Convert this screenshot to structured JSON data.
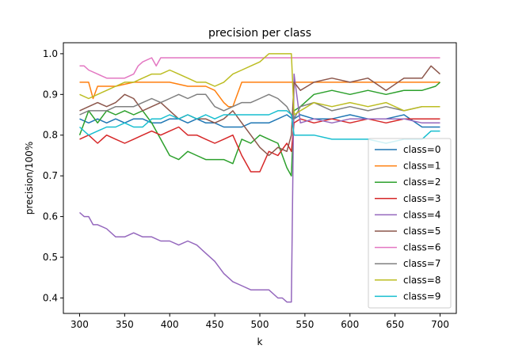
{
  "chart_data": {
    "type": "line",
    "title": "precision per class",
    "xlabel": "k",
    "ylabel": "precision/100%",
    "xlim": [
      282,
      718
    ],
    "ylim": [
      0.362,
      1.027
    ],
    "xticks": [
      300,
      350,
      400,
      450,
      500,
      550,
      600,
      650,
      700
    ],
    "yticks": [
      0.4,
      0.5,
      0.6,
      0.7,
      0.8,
      0.9,
      1.0
    ],
    "ytick_labels": [
      "0.4",
      "0.5",
      "0.6",
      "0.7",
      "0.8",
      "0.9",
      "1.0"
    ],
    "grid": false,
    "legend_position": "lower-right",
    "series": [
      {
        "name": "class=0",
        "color": "#1f77b4",
        "x": [
          300,
          310,
          320,
          330,
          340,
          350,
          360,
          370,
          380,
          390,
          400,
          410,
          420,
          430,
          440,
          450,
          460,
          470,
          480,
          490,
          500,
          510,
          520,
          530,
          536,
          538,
          545,
          560,
          580,
          600,
          620,
          640,
          660,
          680,
          700
        ],
        "y": [
          0.84,
          0.83,
          0.84,
          0.83,
          0.84,
          0.83,
          0.84,
          0.84,
          0.83,
          0.83,
          0.84,
          0.84,
          0.83,
          0.84,
          0.83,
          0.83,
          0.82,
          0.82,
          0.82,
          0.83,
          0.83,
          0.83,
          0.84,
          0.85,
          0.84,
          0.84,
          0.85,
          0.84,
          0.84,
          0.85,
          0.84,
          0.84,
          0.85,
          0.82,
          0.82
        ]
      },
      {
        "name": "class=1",
        "color": "#ff7f0e",
        "x": [
          300,
          310,
          315,
          320,
          330,
          340,
          360,
          380,
          400,
          420,
          440,
          450,
          460,
          465,
          470,
          480,
          500,
          520,
          535,
          538,
          545,
          560,
          580,
          600,
          620,
          640,
          660,
          680,
          700
        ],
        "y": [
          0.93,
          0.93,
          0.89,
          0.92,
          0.92,
          0.92,
          0.93,
          0.93,
          0.93,
          0.92,
          0.92,
          0.91,
          0.88,
          0.87,
          0.87,
          0.93,
          0.93,
          0.93,
          0.93,
          0.93,
          0.93,
          0.93,
          0.93,
          0.93,
          0.93,
          0.93,
          0.93,
          0.93,
          0.93
        ]
      },
      {
        "name": "class=2",
        "color": "#2ca02c",
        "x": [
          300,
          310,
          320,
          330,
          340,
          350,
          360,
          370,
          380,
          390,
          400,
          410,
          420,
          430,
          440,
          450,
          460,
          470,
          480,
          490,
          500,
          510,
          520,
          530,
          535,
          538,
          545,
          560,
          580,
          600,
          620,
          640,
          660,
          680,
          695,
          700
        ],
        "y": [
          0.8,
          0.86,
          0.83,
          0.86,
          0.85,
          0.86,
          0.85,
          0.86,
          0.83,
          0.79,
          0.75,
          0.74,
          0.76,
          0.75,
          0.74,
          0.74,
          0.74,
          0.73,
          0.79,
          0.78,
          0.8,
          0.79,
          0.78,
          0.72,
          0.7,
          0.86,
          0.87,
          0.9,
          0.91,
          0.9,
          0.91,
          0.9,
          0.91,
          0.91,
          0.92,
          0.93
        ]
      },
      {
        "name": "class=3",
        "color": "#d62728",
        "x": [
          300,
          310,
          320,
          330,
          340,
          350,
          360,
          370,
          380,
          390,
          400,
          410,
          420,
          430,
          440,
          450,
          460,
          470,
          480,
          490,
          500,
          510,
          520,
          530,
          535,
          538,
          545,
          560,
          580,
          600,
          620,
          640,
          660,
          680,
          700
        ],
        "y": [
          0.79,
          0.8,
          0.78,
          0.8,
          0.79,
          0.78,
          0.79,
          0.8,
          0.81,
          0.8,
          0.81,
          0.82,
          0.8,
          0.8,
          0.79,
          0.78,
          0.79,
          0.8,
          0.75,
          0.71,
          0.71,
          0.76,
          0.75,
          0.78,
          0.76,
          0.83,
          0.84,
          0.83,
          0.84,
          0.83,
          0.84,
          0.83,
          0.84,
          0.84,
          0.84
        ]
      },
      {
        "name": "class=4",
        "color": "#9467bd",
        "x": [
          300,
          305,
          310,
          315,
          320,
          330,
          340,
          350,
          360,
          370,
          380,
          390,
          400,
          410,
          420,
          430,
          440,
          450,
          460,
          470,
          480,
          490,
          500,
          510,
          520,
          525,
          530,
          535,
          538,
          545,
          560,
          580,
          600,
          620,
          640,
          660,
          680,
          700
        ],
        "y": [
          0.61,
          0.6,
          0.6,
          0.58,
          0.58,
          0.57,
          0.55,
          0.55,
          0.56,
          0.55,
          0.55,
          0.54,
          0.54,
          0.53,
          0.54,
          0.53,
          0.51,
          0.49,
          0.46,
          0.44,
          0.43,
          0.42,
          0.42,
          0.42,
          0.4,
          0.4,
          0.39,
          0.39,
          0.95,
          0.83,
          0.84,
          0.83,
          0.84,
          0.84,
          0.84,
          0.84,
          0.83,
          0.83
        ]
      },
      {
        "name": "class=5",
        "color": "#8c564b",
        "x": [
          300,
          310,
          320,
          330,
          340,
          350,
          360,
          370,
          380,
          390,
          400,
          410,
          420,
          430,
          440,
          450,
          460,
          470,
          480,
          490,
          500,
          510,
          520,
          530,
          535,
          538,
          545,
          560,
          580,
          600,
          620,
          640,
          660,
          680,
          690,
          700
        ],
        "y": [
          0.86,
          0.87,
          0.88,
          0.87,
          0.88,
          0.9,
          0.89,
          0.86,
          0.87,
          0.88,
          0.86,
          0.84,
          0.85,
          0.84,
          0.84,
          0.83,
          0.84,
          0.86,
          0.83,
          0.8,
          0.77,
          0.75,
          0.77,
          0.76,
          0.8,
          0.93,
          0.91,
          0.93,
          0.94,
          0.93,
          0.94,
          0.91,
          0.94,
          0.94,
          0.97,
          0.95
        ]
      },
      {
        "name": "class=6",
        "color": "#e377c2",
        "x": [
          300,
          305,
          310,
          320,
          330,
          340,
          350,
          360,
          365,
          370,
          380,
          385,
          390,
          400,
          420,
          440,
          460,
          480,
          500,
          520,
          540,
          560,
          600,
          640,
          680,
          700
        ],
        "y": [
          0.97,
          0.97,
          0.96,
          0.95,
          0.94,
          0.94,
          0.94,
          0.95,
          0.97,
          0.98,
          0.99,
          0.97,
          0.99,
          0.99,
          0.99,
          0.99,
          0.99,
          0.99,
          0.99,
          0.99,
          0.99,
          0.99,
          0.99,
          0.99,
          0.99,
          0.99
        ]
      },
      {
        "name": "class=7",
        "color": "#7f7f7f",
        "x": [
          300,
          310,
          320,
          330,
          340,
          350,
          360,
          370,
          380,
          390,
          400,
          410,
          420,
          430,
          440,
          450,
          460,
          470,
          480,
          490,
          500,
          510,
          520,
          530,
          535,
          538,
          545,
          560,
          580,
          600,
          620,
          640,
          660,
          680,
          700
        ],
        "y": [
          0.85,
          0.86,
          0.86,
          0.86,
          0.87,
          0.87,
          0.87,
          0.88,
          0.89,
          0.88,
          0.89,
          0.9,
          0.89,
          0.9,
          0.9,
          0.87,
          0.86,
          0.87,
          0.88,
          0.88,
          0.89,
          0.9,
          0.89,
          0.87,
          0.85,
          0.84,
          0.87,
          0.88,
          0.86,
          0.87,
          0.86,
          0.87,
          0.86,
          0.87,
          0.87
        ]
      },
      {
        "name": "class=8",
        "color": "#bcbd22",
        "x": [
          300,
          310,
          320,
          330,
          340,
          350,
          360,
          370,
          380,
          390,
          400,
          410,
          420,
          430,
          440,
          450,
          460,
          470,
          480,
          490,
          500,
          510,
          520,
          530,
          535,
          538,
          545,
          560,
          580,
          600,
          620,
          640,
          660,
          680,
          700
        ],
        "y": [
          0.9,
          0.89,
          0.9,
          0.91,
          0.92,
          0.93,
          0.93,
          0.94,
          0.95,
          0.95,
          0.96,
          0.95,
          0.94,
          0.93,
          0.93,
          0.92,
          0.93,
          0.95,
          0.96,
          0.97,
          0.98,
          1.0,
          1.0,
          1.0,
          1.0,
          0.85,
          0.86,
          0.88,
          0.87,
          0.88,
          0.87,
          0.88,
          0.86,
          0.87,
          0.87
        ]
      },
      {
        "name": "class=9",
        "color": "#17becf",
        "x": [
          300,
          310,
          320,
          330,
          340,
          350,
          360,
          370,
          380,
          390,
          400,
          410,
          420,
          430,
          440,
          450,
          460,
          470,
          480,
          490,
          500,
          510,
          520,
          530,
          535,
          538,
          545,
          560,
          580,
          600,
          620,
          640,
          660,
          680,
          690,
          700
        ],
        "y": [
          0.82,
          0.8,
          0.81,
          0.82,
          0.82,
          0.83,
          0.82,
          0.82,
          0.84,
          0.84,
          0.85,
          0.84,
          0.85,
          0.84,
          0.85,
          0.84,
          0.85,
          0.85,
          0.85,
          0.85,
          0.85,
          0.85,
          0.86,
          0.86,
          0.85,
          0.8,
          0.8,
          0.8,
          0.79,
          0.79,
          0.79,
          0.78,
          0.79,
          0.79,
          0.81,
          0.81
        ]
      }
    ]
  }
}
